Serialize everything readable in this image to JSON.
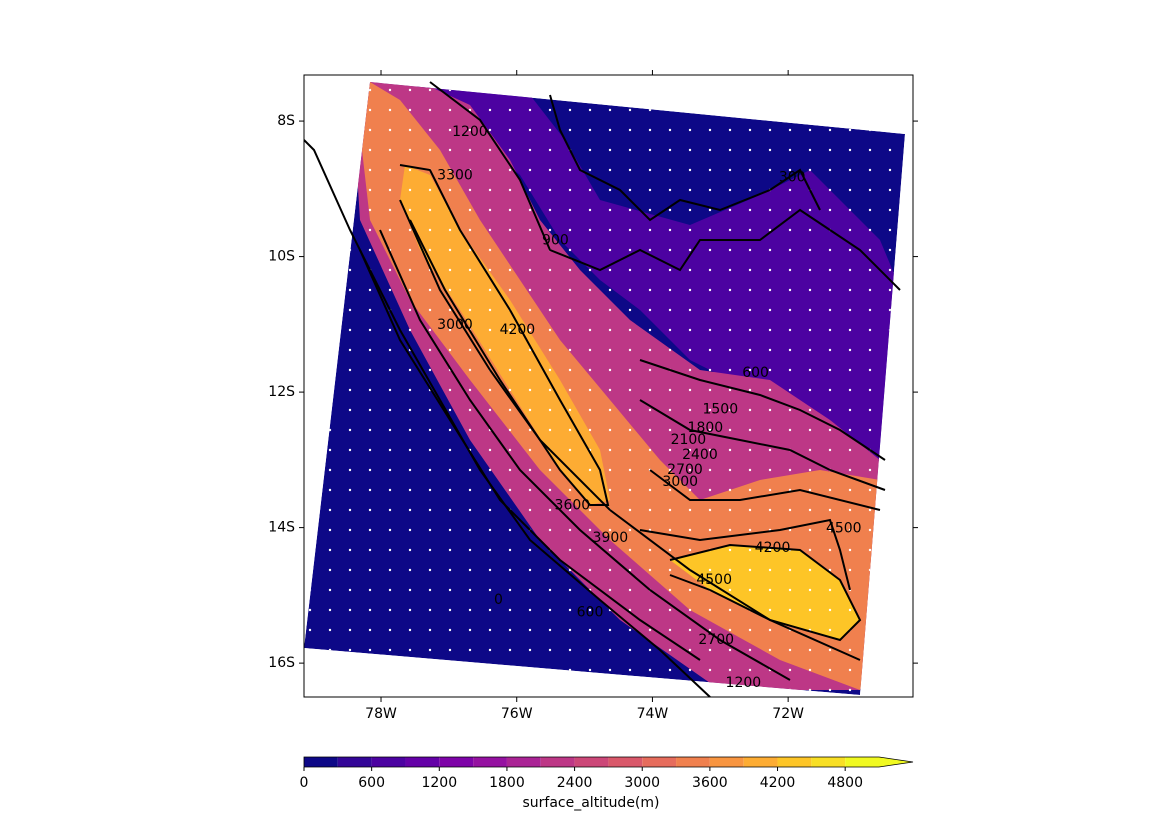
{
  "map": {
    "xlim": [
      -79.135,
      -70.16
    ],
    "ylim": [
      -16.5,
      -7.32
    ],
    "xticks": [
      {
        "value": -78,
        "label": "78W"
      },
      {
        "value": -76,
        "label": "76W"
      },
      {
        "value": -74,
        "label": "74W"
      },
      {
        "value": -72,
        "label": "72W"
      }
    ],
    "yticks": [
      {
        "value": -8,
        "label": "8S"
      },
      {
        "value": -10,
        "label": "10S"
      },
      {
        "value": -12,
        "label": "12S"
      },
      {
        "value": -14,
        "label": "14S"
      },
      {
        "value": -16,
        "label": "16S"
      }
    ],
    "contour_labels": [
      {
        "value": 300,
        "lon": -71.94,
        "lat": -8.83
      },
      {
        "value": 1200,
        "lon": -76.69,
        "lat": -8.16
      },
      {
        "value": 3300,
        "lon": -76.91,
        "lat": -8.8
      },
      {
        "value": 900,
        "lon": -75.43,
        "lat": -9.76
      },
      {
        "value": 4200,
        "lon": -75.99,
        "lat": -11.08
      },
      {
        "value": 3000,
        "lon": -76.91,
        "lat": -11.01
      },
      {
        "value": 600,
        "lon": -72.48,
        "lat": -11.72
      },
      {
        "value": 1500,
        "lon": -73.0,
        "lat": -12.26
      },
      {
        "value": 1800,
        "lon": -73.22,
        "lat": -12.53
      },
      {
        "value": 2100,
        "lon": -73.47,
        "lat": -12.71
      },
      {
        "value": 2400,
        "lon": -73.3,
        "lat": -12.93
      },
      {
        "value": 2700,
        "lon": -73.52,
        "lat": -13.15
      },
      {
        "value": 3000,
        "lon": -73.59,
        "lat": -13.33
      },
      {
        "value": 3600,
        "lon": -75.18,
        "lat": -13.67
      },
      {
        "value": 3900,
        "lon": -74.62,
        "lat": -14.15
      },
      {
        "value": 4500,
        "lon": -71.18,
        "lat": -14.01
      },
      {
        "value": 4200,
        "lon": -72.23,
        "lat": -14.3
      },
      {
        "value": 4500,
        "lon": -73.09,
        "lat": -14.77
      },
      {
        "value": 0,
        "lon": -76.27,
        "lat": -15.07
      },
      {
        "value": 600,
        "lon": -74.92,
        "lat": -15.25
      },
      {
        "value": 2700,
        "lon": -73.06,
        "lat": -15.66
      },
      {
        "value": 1200,
        "lon": -72.66,
        "lat": -16.29
      }
    ]
  },
  "colorbar": {
    "label": "surface_altitude(m)",
    "levels": [
      0,
      300,
      600,
      900,
      1200,
      1500,
      1800,
      2100,
      2400,
      2700,
      3000,
      3300,
      3600,
      3900,
      4200,
      4500,
      4800,
      5100
    ],
    "colors": [
      "#0d0887",
      "#330597",
      "#4c02a1",
      "#6400a7",
      "#7e03a8",
      "#9511a1",
      "#aa2395",
      "#bd3786",
      "#cc4778",
      "#d9586a",
      "#e66c5c",
      "#f0804e",
      "#f89540",
      "#fdac33",
      "#fdc527",
      "#f8df25",
      "#f0f921"
    ],
    "extend_color": "#f0f921",
    "ticks": [
      0,
      600,
      1200,
      1800,
      2400,
      3000,
      3600,
      4200,
      4800
    ]
  }
}
